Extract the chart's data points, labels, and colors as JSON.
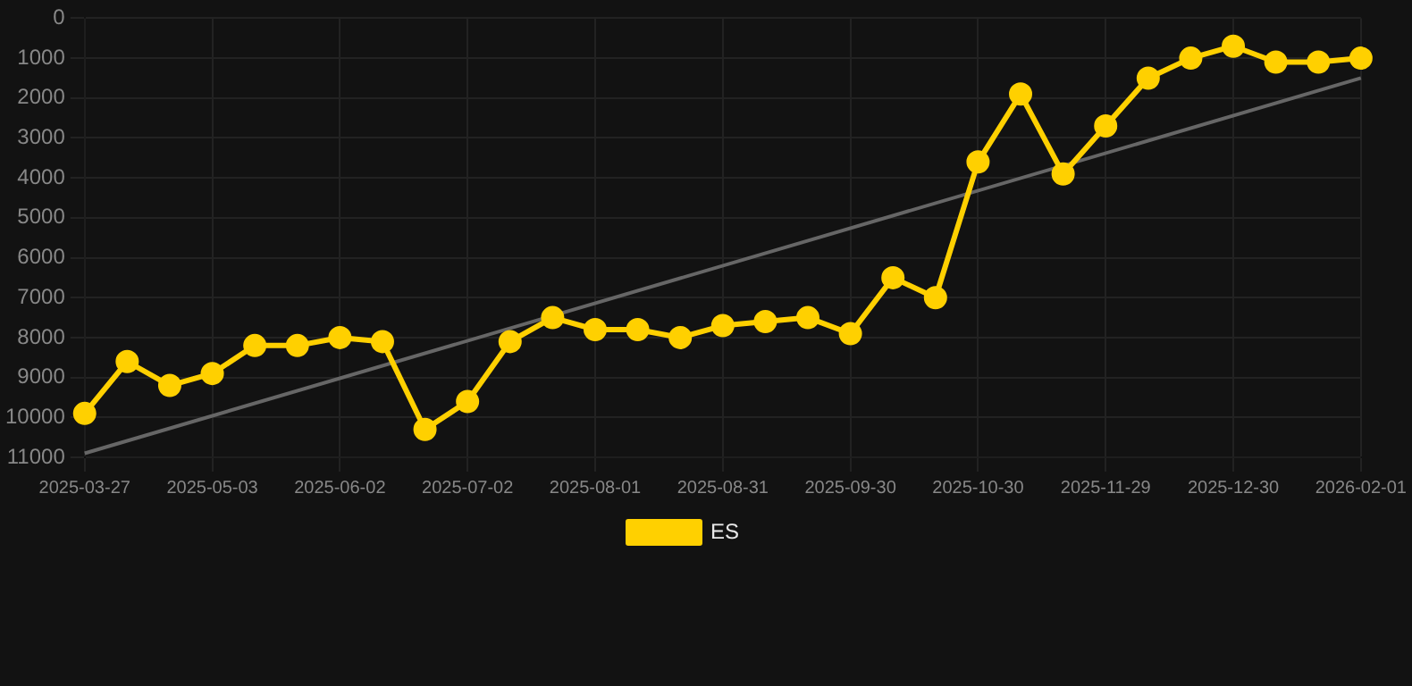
{
  "chart_data": {
    "type": "line",
    "categories": [
      "2025-03-27",
      null,
      null,
      "2025-05-03",
      null,
      null,
      "2025-06-02",
      null,
      null,
      "2025-07-02",
      null,
      null,
      "2025-08-01",
      null,
      null,
      "2025-08-31",
      null,
      null,
      "2025-09-30",
      null,
      null,
      "2025-10-30",
      null,
      null,
      "2025-11-29",
      null,
      null,
      "2025-12-30",
      null,
      null,
      "2026-02-01"
    ],
    "series": [
      {
        "name": "ES",
        "color": "#ffd000",
        "marker": "circle",
        "values": [
          9900,
          8600,
          9200,
          8900,
          8200,
          8200,
          8000,
          8100,
          10300,
          9600,
          8100,
          7500,
          7800,
          7800,
          8000,
          7700,
          7600,
          7500,
          7900,
          6500,
          7000,
          3600,
          1900,
          3900,
          2700,
          1500,
          1000,
          700,
          1100,
          1100,
          1000
        ]
      },
      {
        "type": "line",
        "color": "#666666",
        "marker": "none",
        "values": [
          10900,
          null,
          null,
          null,
          null,
          null,
          null,
          null,
          null,
          null,
          null,
          null,
          null,
          null,
          null,
          null,
          null,
          null,
          null,
          null,
          null,
          null,
          null,
          null,
          null,
          null,
          null,
          null,
          null,
          null,
          1500
        ]
      }
    ],
    "ylim": [
      11000,
      0
    ],
    "yticks": [
      0,
      1000,
      2000,
      3000,
      4000,
      5000,
      6000,
      7000,
      8000,
      9000,
      10000,
      11000
    ],
    "grid": true,
    "legend": "bottom"
  }
}
